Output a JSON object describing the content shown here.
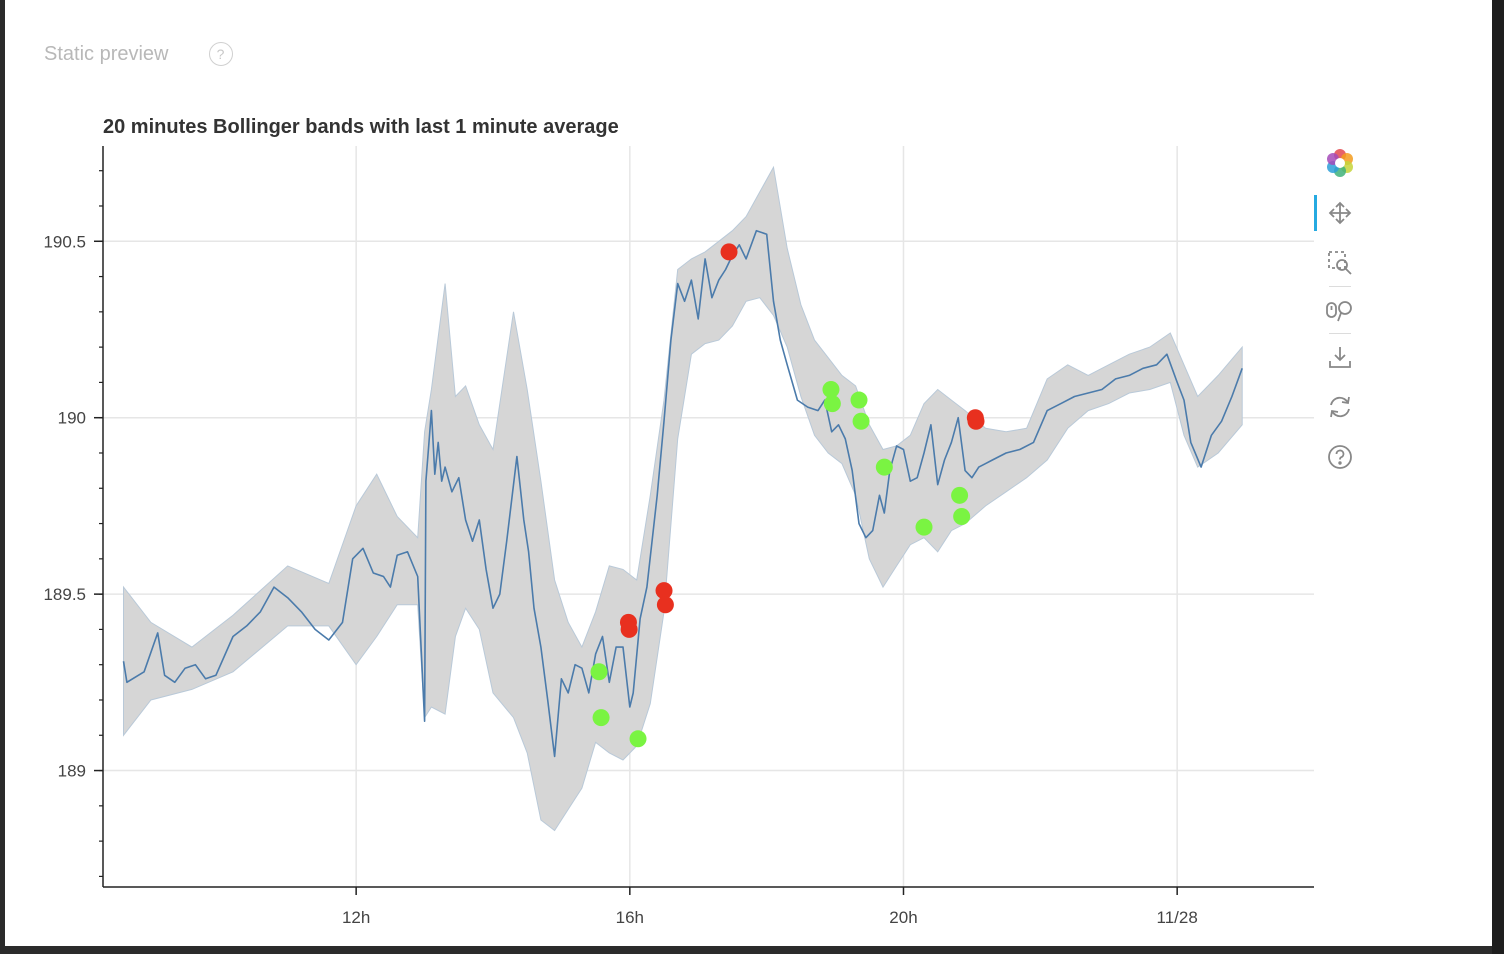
{
  "preview": {
    "label": "Static preview",
    "help": "?"
  },
  "chart_data": {
    "type": "line",
    "title": "20 minutes Bollinger bands with last 1 minute average",
    "xlabel": "",
    "ylabel": "",
    "x_ticks": [
      "12h",
      "16h",
      "20h",
      "11/28"
    ],
    "x_tick_hours": [
      12,
      16,
      20,
      24
    ],
    "y_ticks": [
      "189",
      "189.5",
      "190",
      "190.5"
    ],
    "y_tick_values": [
      189,
      189.5,
      190,
      190.5
    ],
    "xlim_hours": [
      8.3,
      26.0
    ],
    "ylim": [
      188.67,
      190.77
    ],
    "grid": true,
    "colors": {
      "line": "#4b7bab",
      "band": "#d6d6d6",
      "band_edge": "#b9c9d8",
      "buy": "#7af442",
      "sell": "#e8301f"
    },
    "series": [
      {
        "kind": "average",
        "x_hours": [
          8.6,
          8.65,
          8.9,
          9.1,
          9.2,
          9.35,
          9.5,
          9.65,
          9.8,
          9.95,
          10.2,
          10.4,
          10.6,
          10.8,
          11.0,
          11.2,
          11.4,
          11.6,
          11.8,
          11.95,
          12.1,
          12.25,
          12.4,
          12.5,
          12.6,
          12.75,
          12.9,
          13.0,
          13.02,
          13.06,
          13.1,
          13.15,
          13.2,
          13.25,
          13.3,
          13.4,
          13.5,
          13.6,
          13.7,
          13.8,
          13.9,
          14.0,
          14.1,
          14.2,
          14.35,
          14.45,
          14.52,
          14.6,
          14.7,
          14.8,
          14.9,
          15.0,
          15.1,
          15.2,
          15.3,
          15.4,
          15.5,
          15.6,
          15.7,
          15.8,
          15.9,
          16.0,
          16.05,
          16.15,
          16.25,
          16.4,
          16.5,
          16.6,
          16.7,
          16.8,
          16.9,
          17.0,
          17.1,
          17.2,
          17.3,
          17.4,
          17.5,
          17.6,
          17.7,
          17.85,
          18.0,
          18.1,
          18.2,
          18.3,
          18.45,
          18.6,
          18.75,
          18.85,
          18.95,
          19.05,
          19.15,
          19.25,
          19.35,
          19.45,
          19.55,
          19.65,
          19.72,
          19.8,
          19.9,
          20.0,
          20.1,
          20.2,
          20.3,
          20.4,
          20.5,
          20.6,
          20.7,
          20.8,
          20.9,
          21.0,
          21.1,
          21.2,
          21.3,
          21.5,
          21.7,
          21.9,
          22.1,
          22.3,
          22.5,
          22.7,
          22.9,
          23.1,
          23.3,
          23.5,
          23.7,
          23.85,
          24.0,
          24.1,
          24.2,
          24.35,
          24.5,
          24.65,
          24.8,
          24.95
        ],
        "values": [
          189.31,
          189.25,
          189.28,
          189.39,
          189.27,
          189.25,
          189.29,
          189.3,
          189.26,
          189.27,
          189.38,
          189.41,
          189.45,
          189.52,
          189.49,
          189.45,
          189.4,
          189.37,
          189.42,
          189.6,
          189.63,
          189.56,
          189.55,
          189.52,
          189.61,
          189.62,
          189.55,
          189.14,
          189.82,
          189.92,
          190.02,
          189.84,
          189.93,
          189.82,
          189.86,
          189.79,
          189.83,
          189.71,
          189.65,
          189.71,
          189.57,
          189.46,
          189.5,
          189.65,
          189.89,
          189.71,
          189.62,
          189.46,
          189.35,
          189.2,
          189.04,
          189.26,
          189.22,
          189.3,
          189.29,
          189.22,
          189.33,
          189.38,
          189.25,
          189.35,
          189.35,
          189.18,
          189.22,
          189.43,
          189.52,
          189.78,
          189.99,
          190.22,
          190.38,
          190.33,
          190.39,
          190.28,
          190.45,
          190.34,
          190.39,
          190.42,
          190.46,
          190.49,
          190.45,
          190.53,
          190.52,
          190.33,
          190.22,
          190.15,
          190.05,
          190.03,
          190.02,
          190.05,
          189.96,
          189.98,
          189.94,
          189.85,
          189.7,
          189.66,
          189.68,
          189.78,
          189.73,
          189.85,
          189.92,
          189.91,
          189.82,
          189.83,
          189.9,
          189.98,
          189.81,
          189.88,
          189.93,
          190.0,
          189.85,
          189.83,
          189.86,
          189.87,
          189.88,
          189.9,
          189.91,
          189.93,
          190.02,
          190.04,
          190.06,
          190.07,
          190.08,
          190.11,
          190.12,
          190.14,
          190.15,
          190.18,
          190.1,
          190.05,
          189.93,
          189.86,
          189.95,
          189.99,
          190.06,
          190.14
        ]
      },
      {
        "kind": "upper_band",
        "x_hours": [
          8.6,
          9.0,
          9.6,
          10.2,
          11.0,
          11.6,
          12.0,
          12.3,
          12.6,
          12.9,
          13.0,
          13.1,
          13.3,
          13.45,
          13.6,
          13.8,
          14.0,
          14.3,
          14.5,
          14.7,
          14.9,
          15.1,
          15.3,
          15.5,
          15.7,
          15.9,
          16.1,
          16.3,
          16.5,
          16.7,
          16.9,
          17.1,
          17.3,
          17.5,
          17.7,
          17.9,
          18.1,
          18.3,
          18.5,
          18.7,
          18.9,
          19.1,
          19.3,
          19.5,
          19.7,
          19.9,
          20.1,
          20.3,
          20.5,
          20.7,
          20.9,
          21.2,
          21.5,
          21.8,
          22.1,
          22.4,
          22.7,
          23.0,
          23.3,
          23.6,
          23.9,
          24.1,
          24.3,
          24.6,
          24.95
        ],
        "values": [
          189.52,
          189.42,
          189.35,
          189.44,
          189.58,
          189.53,
          189.75,
          189.84,
          189.72,
          189.66,
          189.96,
          190.08,
          190.38,
          190.06,
          190.09,
          189.98,
          189.91,
          190.3,
          190.08,
          189.82,
          189.54,
          189.42,
          189.35,
          189.45,
          189.58,
          189.57,
          189.54,
          189.78,
          190.05,
          190.42,
          190.45,
          190.47,
          190.5,
          190.53,
          190.57,
          190.64,
          190.71,
          190.48,
          190.32,
          190.22,
          190.17,
          190.12,
          190.09,
          189.98,
          189.91,
          189.92,
          189.95,
          190.04,
          190.08,
          190.05,
          190.02,
          189.97,
          189.96,
          189.97,
          190.11,
          190.15,
          190.12,
          190.15,
          190.18,
          190.2,
          190.24,
          190.15,
          190.06,
          190.12,
          190.2
        ]
      },
      {
        "kind": "lower_band",
        "x_hours": [
          8.6,
          9.0,
          9.6,
          10.2,
          11.0,
          11.6,
          12.0,
          12.3,
          12.6,
          12.9,
          13.0,
          13.1,
          13.3,
          13.45,
          13.6,
          13.8,
          14.0,
          14.3,
          14.5,
          14.7,
          14.9,
          15.1,
          15.3,
          15.5,
          15.7,
          15.9,
          16.1,
          16.3,
          16.5,
          16.7,
          16.9,
          17.1,
          17.3,
          17.5,
          17.7,
          17.9,
          18.1,
          18.3,
          18.5,
          18.7,
          18.9,
          19.1,
          19.3,
          19.5,
          19.7,
          19.9,
          20.1,
          20.3,
          20.5,
          20.7,
          20.9,
          21.2,
          21.5,
          21.8,
          22.1,
          22.4,
          22.7,
          23.0,
          23.3,
          23.6,
          23.9,
          24.1,
          24.3,
          24.6,
          24.95
        ],
        "values": [
          189.1,
          189.2,
          189.23,
          189.28,
          189.41,
          189.41,
          189.3,
          189.38,
          189.47,
          189.47,
          189.15,
          189.18,
          189.16,
          189.38,
          189.46,
          189.4,
          189.22,
          189.15,
          189.05,
          188.86,
          188.83,
          188.89,
          188.95,
          189.08,
          189.05,
          189.03,
          189.07,
          189.19,
          189.45,
          189.94,
          190.18,
          190.21,
          190.22,
          190.26,
          190.33,
          190.34,
          190.29,
          190.2,
          190.06,
          189.95,
          189.9,
          189.87,
          189.78,
          189.6,
          189.52,
          189.58,
          189.64,
          189.66,
          189.62,
          189.68,
          189.7,
          189.75,
          189.79,
          189.83,
          189.88,
          189.97,
          190.02,
          190.04,
          190.07,
          190.08,
          190.1,
          189.95,
          189.86,
          189.9,
          189.98
        ]
      }
    ],
    "buy_signals": {
      "x_hours": [
        15.55,
        15.58,
        16.12,
        18.94,
        18.96,
        19.35,
        19.38,
        19.72,
        20.3,
        20.82,
        20.85
      ],
      "values": [
        189.28,
        189.15,
        189.09,
        190.08,
        190.04,
        190.05,
        189.99,
        189.86,
        189.69,
        189.78,
        189.72
      ]
    },
    "sell_signals": {
      "x_hours": [
        15.98,
        15.99,
        16.5,
        16.52,
        17.45,
        21.05,
        21.06
      ],
      "values": [
        189.42,
        189.4,
        189.51,
        189.47,
        190.47,
        190.0,
        189.99
      ]
    }
  },
  "toolbar": {
    "tools": [
      {
        "name": "bokeh-logo-icon",
        "active": false
      },
      {
        "name": "pan-tool-icon",
        "active": true
      },
      {
        "name": "box-zoom-tool-icon",
        "active": false
      },
      {
        "name": "wheel-zoom-tool-icon",
        "active": false
      },
      {
        "name": "save-tool-icon",
        "active": false
      },
      {
        "name": "reset-tool-icon",
        "active": false
      },
      {
        "name": "help-tool-icon",
        "active": false
      }
    ]
  }
}
